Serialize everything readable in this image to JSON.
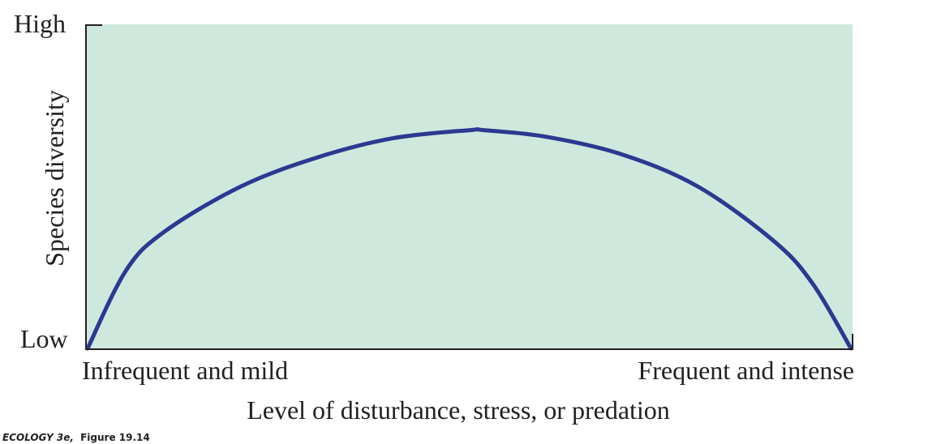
{
  "chart_data": {
    "type": "line",
    "title": "",
    "xlabel": "Level of disturbance, stress, or predation",
    "ylabel": "Species diversity",
    "x_tick_labels": [
      "Infrequent and mild",
      "Frequent and intense"
    ],
    "y_tick_labels": [
      "Low",
      "High"
    ],
    "xlim": [
      0,
      1
    ],
    "ylim": [
      0,
      1
    ],
    "grid": false,
    "legend": "none",
    "series": [
      {
        "name": "Species diversity",
        "x": [
          0,
          0.05,
          0.1,
          0.2,
          0.3,
          0.4,
          0.5,
          0.52,
          0.6,
          0.7,
          0.8,
          0.9,
          0.95,
          1
        ],
        "y": [
          0,
          0.24,
          0.36,
          0.5,
          0.59,
          0.65,
          0.675,
          0.675,
          0.655,
          0.6,
          0.5,
          0.33,
          0.2,
          0
        ]
      }
    ],
    "colors": {
      "plot_background": "#cfe8de",
      "curve": "#2b3990",
      "axis": "#231f20",
      "text": "#231f20"
    }
  },
  "credit": {
    "title_italic": "ECOLOGY 3e,",
    "figure": "Figure 19.14"
  }
}
